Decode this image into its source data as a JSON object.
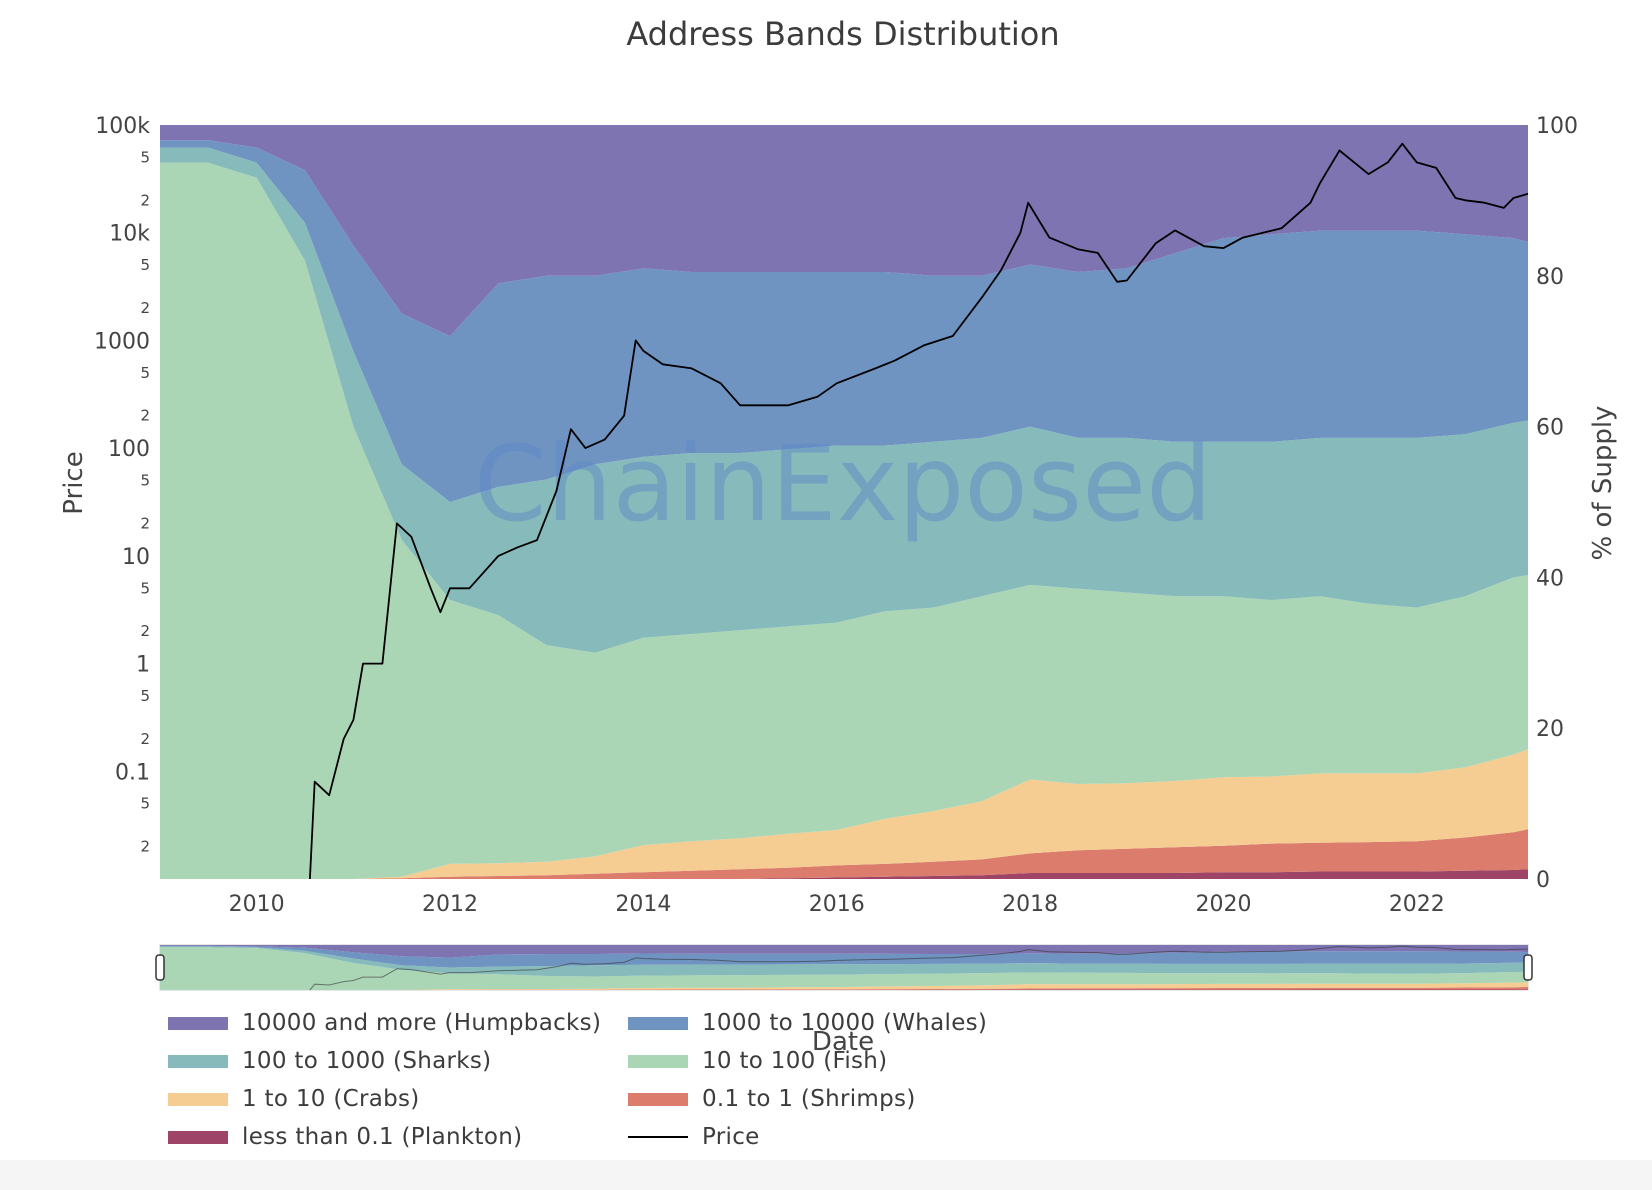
{
  "chart_data": {
    "type": "area",
    "title": "Address Bands Distribution",
    "xlabel": "Date",
    "ylabel_left": "Price",
    "ylabel_right": "% of Supply",
    "watermark": "ChainExposed",
    "x_range": [
      2009.0,
      2023.15
    ],
    "x_ticks": [
      "2010",
      "2012",
      "2014",
      "2016",
      "2018",
      "2020",
      "2022"
    ],
    "y_left_scale": "log",
    "y_left_range": [
      0.01,
      100000
    ],
    "y_left_major_ticks": [
      "0.1",
      "1",
      "10",
      "100",
      "1000",
      "10k",
      "100k"
    ],
    "y_left_minor_ticks": [
      "2",
      "5"
    ],
    "y_right_range": [
      0,
      100
    ],
    "y_right_ticks": [
      "0",
      "20",
      "40",
      "60",
      "80",
      "100"
    ],
    "stacking": "cumulative boundaries (% of supply), bottom to top",
    "dates": [
      2009.0,
      2009.5,
      2010.0,
      2010.5,
      2011.0,
      2011.5,
      2012.0,
      2012.5,
      2013.0,
      2013.5,
      2014.0,
      2014.5,
      2015.0,
      2015.5,
      2016.0,
      2016.5,
      2017.0,
      2017.5,
      2018.0,
      2018.5,
      2019.0,
      2019.5,
      2020.0,
      2020.5,
      2021.0,
      2021.5,
      2022.0,
      2022.5,
      2023.0,
      2023.15
    ],
    "boundaries": [
      {
        "name": "less than 0.1 (Plankton)",
        "color": "#9e4466",
        "top": [
          0,
          0,
          0,
          0,
          0,
          0,
          0,
          0,
          0,
          0,
          0,
          0,
          0,
          0.1,
          0.2,
          0.3,
          0.4,
          0.5,
          0.8,
          0.8,
          0.8,
          0.8,
          0.9,
          0.9,
          1.0,
          1.0,
          1.0,
          1.1,
          1.2,
          1.3
        ]
      },
      {
        "name": "0.1 to 1 (Shrimps)",
        "color": "#dc7c6c",
        "top": [
          0,
          0,
          0,
          0,
          0,
          0.1,
          0.3,
          0.4,
          0.5,
          0.7,
          0.9,
          1.1,
          1.3,
          1.5,
          1.8,
          2.0,
          2.3,
          2.6,
          3.4,
          3.8,
          4.0,
          4.2,
          4.4,
          4.7,
          4.8,
          4.9,
          5.0,
          5.5,
          6.2,
          6.6
        ]
      },
      {
        "name": "1 to 10 (Crabs)",
        "color": "#f5cd93",
        "top": [
          0,
          0,
          0,
          0,
          0,
          0.3,
          2.0,
          2.1,
          2.3,
          3.0,
          4.5,
          5.0,
          5.4,
          6.0,
          6.5,
          8.0,
          9.0,
          10.3,
          13.2,
          12.6,
          12.7,
          13.0,
          13.5,
          13.6,
          14.0,
          14.0,
          14.0,
          14.8,
          16.5,
          17.2
        ]
      },
      {
        "name": "10 to 100 (Fish)",
        "color": "#abd6b5",
        "top": [
          95,
          95,
          93,
          82,
          60,
          45,
          37,
          35,
          31,
          30,
          32,
          32.5,
          33,
          33.5,
          34,
          35.5,
          36,
          37.5,
          39,
          38.5,
          38,
          37.5,
          37.5,
          37,
          37.5,
          36.5,
          36,
          37.5,
          40,
          40.3
        ]
      },
      {
        "name": "100 to 1000 (Sharks)",
        "color": "#87bbbb",
        "top": [
          97,
          97,
          95,
          87,
          70,
          55,
          50,
          52,
          53,
          55,
          56,
          56.5,
          56.5,
          57,
          57.5,
          57.5,
          58,
          58.5,
          60,
          58.5,
          58.5,
          58,
          58,
          58,
          58.5,
          58.5,
          58.5,
          59,
          60.5,
          60.8
        ]
      },
      {
        "name": "1000 to 10000 (Whales)",
        "color": "#6f94c1",
        "top": [
          98,
          98,
          97,
          94,
          84,
          75,
          72,
          79,
          80,
          80,
          81,
          80.5,
          80.5,
          80.5,
          80.5,
          80.5,
          80,
          80,
          81.5,
          80.5,
          81,
          83,
          85,
          85.5,
          86,
          86,
          86,
          85.5,
          85,
          84.5
        ]
      },
      {
        "name": "10000 and more (Humpbacks)",
        "color": "#7e74b1",
        "top": [
          100,
          100,
          100,
          100,
          100,
          100,
          100,
          100,
          100,
          100,
          100,
          100,
          100,
          100,
          100,
          100,
          100,
          100,
          100,
          100,
          100,
          100,
          100,
          100,
          100,
          100,
          100,
          100,
          100,
          100
        ]
      }
    ],
    "price": {
      "name": "Price",
      "color": "#000000",
      "x": [
        2010.55,
        2010.6,
        2010.75,
        2010.9,
        2011.0,
        2011.1,
        2011.3,
        2011.45,
        2011.6,
        2011.8,
        2011.9,
        2012.0,
        2012.2,
        2012.5,
        2012.7,
        2012.9,
        2013.1,
        2013.25,
        2013.4,
        2013.6,
        2013.8,
        2013.92,
        2014.0,
        2014.2,
        2014.5,
        2014.8,
        2015.0,
        2015.5,
        2015.8,
        2016.0,
        2016.4,
        2016.6,
        2016.9,
        2017.2,
        2017.5,
        2017.7,
        2017.9,
        2017.98,
        2018.2,
        2018.5,
        2018.7,
        2018.9,
        2019.0,
        2019.3,
        2019.5,
        2019.8,
        2020.0,
        2020.2,
        2020.6,
        2020.9,
        2021.0,
        2021.2,
        2021.5,
        2021.7,
        2021.85,
        2022.0,
        2022.2,
        2022.4,
        2022.5,
        2022.7,
        2022.9,
        2023.0,
        2023.15
      ],
      "y": [
        0.01,
        0.08,
        0.06,
        0.2,
        0.3,
        1.0,
        1.0,
        20,
        15,
        5,
        3,
        5,
        5,
        10,
        12,
        14,
        40,
        150,
        100,
        120,
        200,
        1000,
        800,
        600,
        550,
        400,
        250,
        250,
        300,
        400,
        550,
        650,
        900,
        1100,
        2500,
        4500,
        10000,
        19000,
        9000,
        7000,
        6500,
        3500,
        3600,
        8000,
        10500,
        7500,
        7200,
        9000,
        11000,
        19000,
        29000,
        58000,
        35000,
        45000,
        67000,
        45000,
        40000,
        21000,
        20000,
        19000,
        17000,
        21000,
        23000
      ]
    },
    "rangeslider": {
      "visible": true
    }
  },
  "legend": {
    "items": [
      {
        "label": "10000 and more (Humpbacks)",
        "color": "#7e74b1",
        "kind": "area"
      },
      {
        "label": "1000 to 10000 (Whales)",
        "color": "#6f94c1",
        "kind": "area"
      },
      {
        "label": "100 to 1000 (Sharks)",
        "color": "#87bbbb",
        "kind": "area"
      },
      {
        "label": "10 to 100 (Fish)",
        "color": "#abd6b5",
        "kind": "area"
      },
      {
        "label": "1 to 10 (Crabs)",
        "color": "#f5cd93",
        "kind": "area"
      },
      {
        "label": "0.1 to 1 (Shrimps)",
        "color": "#dc7c6c",
        "kind": "area"
      },
      {
        "label": "less than 0.1 (Plankton)",
        "color": "#9e4466",
        "kind": "area"
      },
      {
        "label": "Price",
        "color": "#000000",
        "kind": "line"
      }
    ]
  }
}
